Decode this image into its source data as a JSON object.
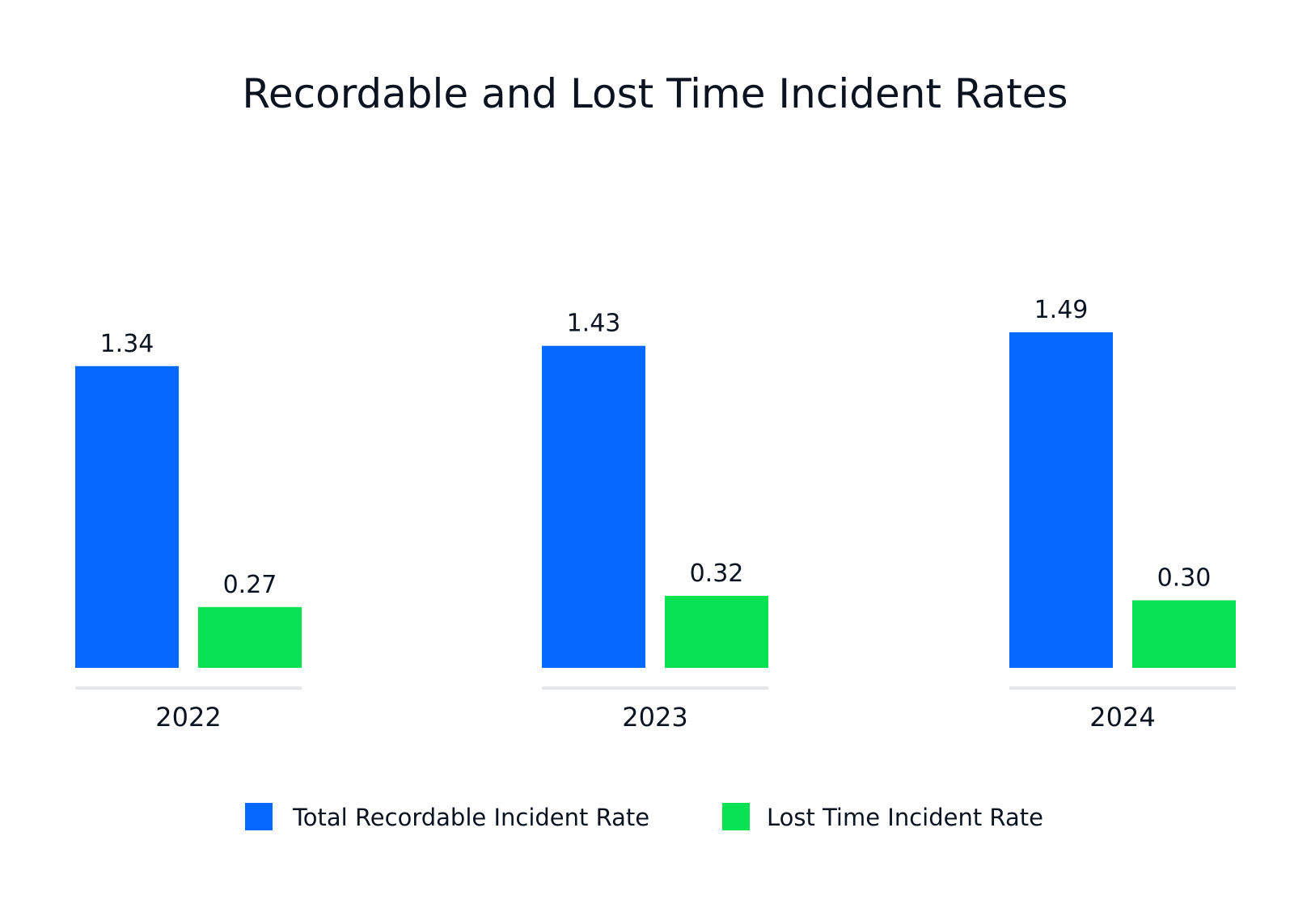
{
  "chart_data": {
    "type": "bar",
    "title": "Recordable and Lost Time Incident Rates",
    "categories": [
      "2022",
      "2023",
      "2024"
    ],
    "series": [
      {
        "name": "Total Recordable Incident Rate",
        "color": "#0569ff",
        "values": [
          1.34,
          1.43,
          1.49
        ],
        "labels": [
          "1.34",
          "1.43",
          "1.49"
        ]
      },
      {
        "name": "Lost Time Incident Rate",
        "color": "#06e251",
        "values": [
          0.27,
          0.32,
          0.3
        ],
        "labels": [
          "0.27",
          "0.32",
          "0.30"
        ]
      }
    ],
    "ylim": [
      0,
      1.49
    ],
    "grid": false,
    "legend_position": "bottom"
  }
}
